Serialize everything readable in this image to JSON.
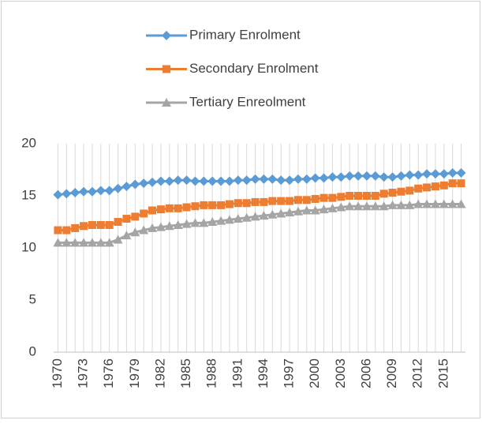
{
  "chart_data": {
    "type": "line",
    "categories": [
      "1970",
      null,
      null,
      "1973",
      null,
      null,
      "1976",
      null,
      null,
      "1979",
      null,
      null,
      "1982",
      null,
      null,
      "1985",
      null,
      null,
      "1988",
      null,
      null,
      "1991",
      null,
      null,
      "1994",
      null,
      null,
      "1997",
      null,
      null,
      "2000",
      null,
      null,
      "2003",
      null,
      null,
      "2006",
      null,
      null,
      "2009",
      null,
      null,
      "2012",
      null,
      null,
      "2015",
      null,
      null
    ],
    "series": [
      {
        "name": "Primary Enrolment",
        "color": "#5b9bd5",
        "marker": "diamond",
        "values": [
          15.1,
          15.2,
          15.3,
          15.4,
          15.4,
          15.5,
          15.5,
          15.7,
          15.9,
          16.1,
          16.2,
          16.3,
          16.4,
          16.4,
          16.5,
          16.5,
          16.4,
          16.4,
          16.4,
          16.4,
          16.4,
          16.5,
          16.5,
          16.6,
          16.6,
          16.6,
          16.5,
          16.5,
          16.6,
          16.6,
          16.7,
          16.7,
          16.8,
          16.8,
          16.9,
          16.9,
          16.9,
          16.9,
          16.8,
          16.8,
          16.9,
          17.0,
          17.0,
          17.1,
          17.1,
          17.1,
          17.2,
          17.2
        ]
      },
      {
        "name": "Secondary Enrolment",
        "color": "#ed7d31",
        "marker": "square",
        "values": [
          11.7,
          11.7,
          11.9,
          12.1,
          12.2,
          12.2,
          12.2,
          12.5,
          12.8,
          13.0,
          13.3,
          13.6,
          13.7,
          13.8,
          13.8,
          13.9,
          14.0,
          14.1,
          14.1,
          14.1,
          14.2,
          14.3,
          14.3,
          14.4,
          14.4,
          14.5,
          14.5,
          14.5,
          14.6,
          14.6,
          14.7,
          14.8,
          14.8,
          14.9,
          15.0,
          15.0,
          15.0,
          15.0,
          15.2,
          15.3,
          15.4,
          15.5,
          15.7,
          15.8,
          15.9,
          16.0,
          16.2,
          16.2
        ]
      },
      {
        "name": "Tertiary Enreolment",
        "color": "#a5a5a5",
        "marker": "triangle",
        "values": [
          10.5,
          10.5,
          10.5,
          10.5,
          10.5,
          10.5,
          10.5,
          10.8,
          11.2,
          11.5,
          11.7,
          11.9,
          12.0,
          12.1,
          12.2,
          12.3,
          12.4,
          12.4,
          12.5,
          12.6,
          12.7,
          12.8,
          12.9,
          13.0,
          13.1,
          13.2,
          13.3,
          13.4,
          13.5,
          13.6,
          13.6,
          13.7,
          13.8,
          13.9,
          14.0,
          14.0,
          14.0,
          14.0,
          14.0,
          14.1,
          14.1,
          14.1,
          14.2,
          14.2,
          14.2,
          14.2,
          14.2,
          14.2
        ]
      }
    ],
    "ylim": [
      0,
      20
    ],
    "yticks": [
      0,
      5,
      10,
      15,
      20
    ],
    "grid": "vertical",
    "legend": "top"
  }
}
